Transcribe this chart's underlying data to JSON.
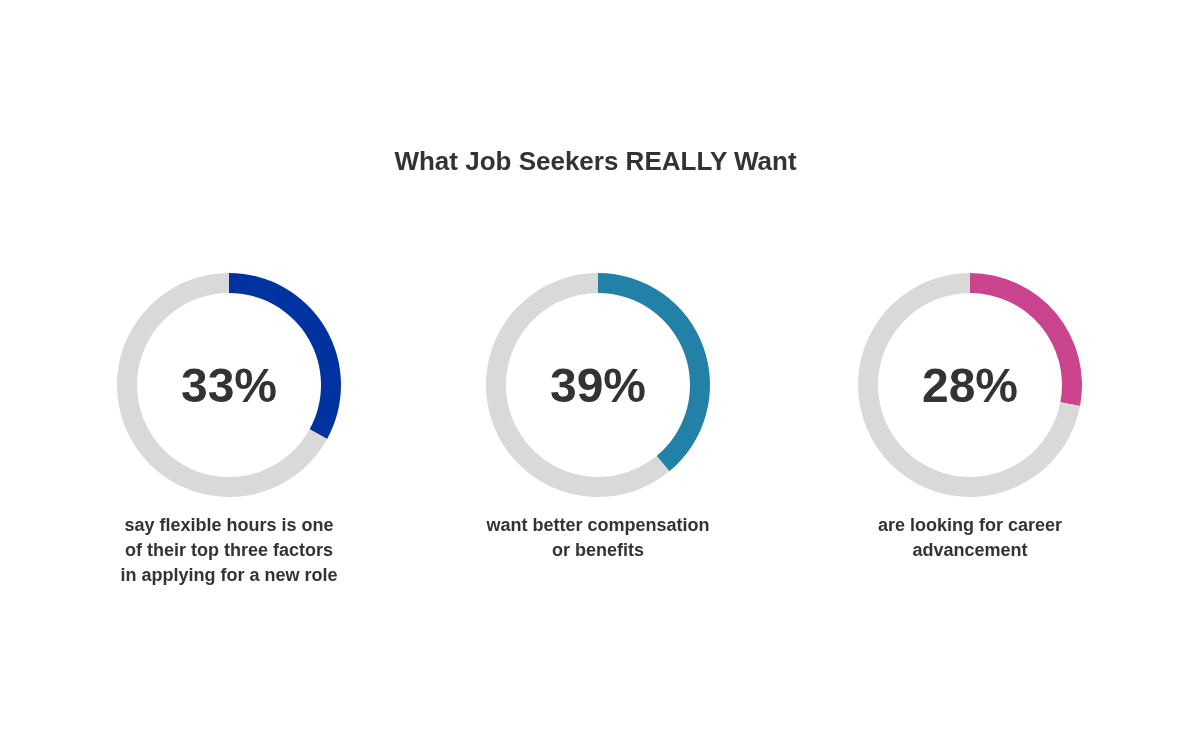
{
  "chart_data": [
    {
      "type": "donut",
      "xlabel": "say flexible hours is one of their top three factors in applying for a new role",
      "categories": [
        null,
        null
      ],
      "values": [
        33,
        67
      ],
      "colors": [
        "#0033a0",
        "#d9d9d9"
      ],
      "annotations": [
        "33%"
      ]
    },
    {
      "type": "donut",
      "title": "What Job Seekers REALLY Want",
      "xlabel": "want better compensation or benefits",
      "categories": [
        null,
        null
      ],
      "values": [
        39,
        61
      ],
      "colors": [
        "#2381a8",
        "#d9d9d9"
      ],
      "annotations": [
        "39%"
      ]
    },
    {
      "type": "donut",
      "xlabel": "are looking for career advancement",
      "categories": [
        null,
        null
      ],
      "values": [
        28,
        72
      ],
      "colors": [
        "#c9448c",
        "#d9d9d9"
      ],
      "annotations": [
        "28%"
      ]
    }
  ]
}
